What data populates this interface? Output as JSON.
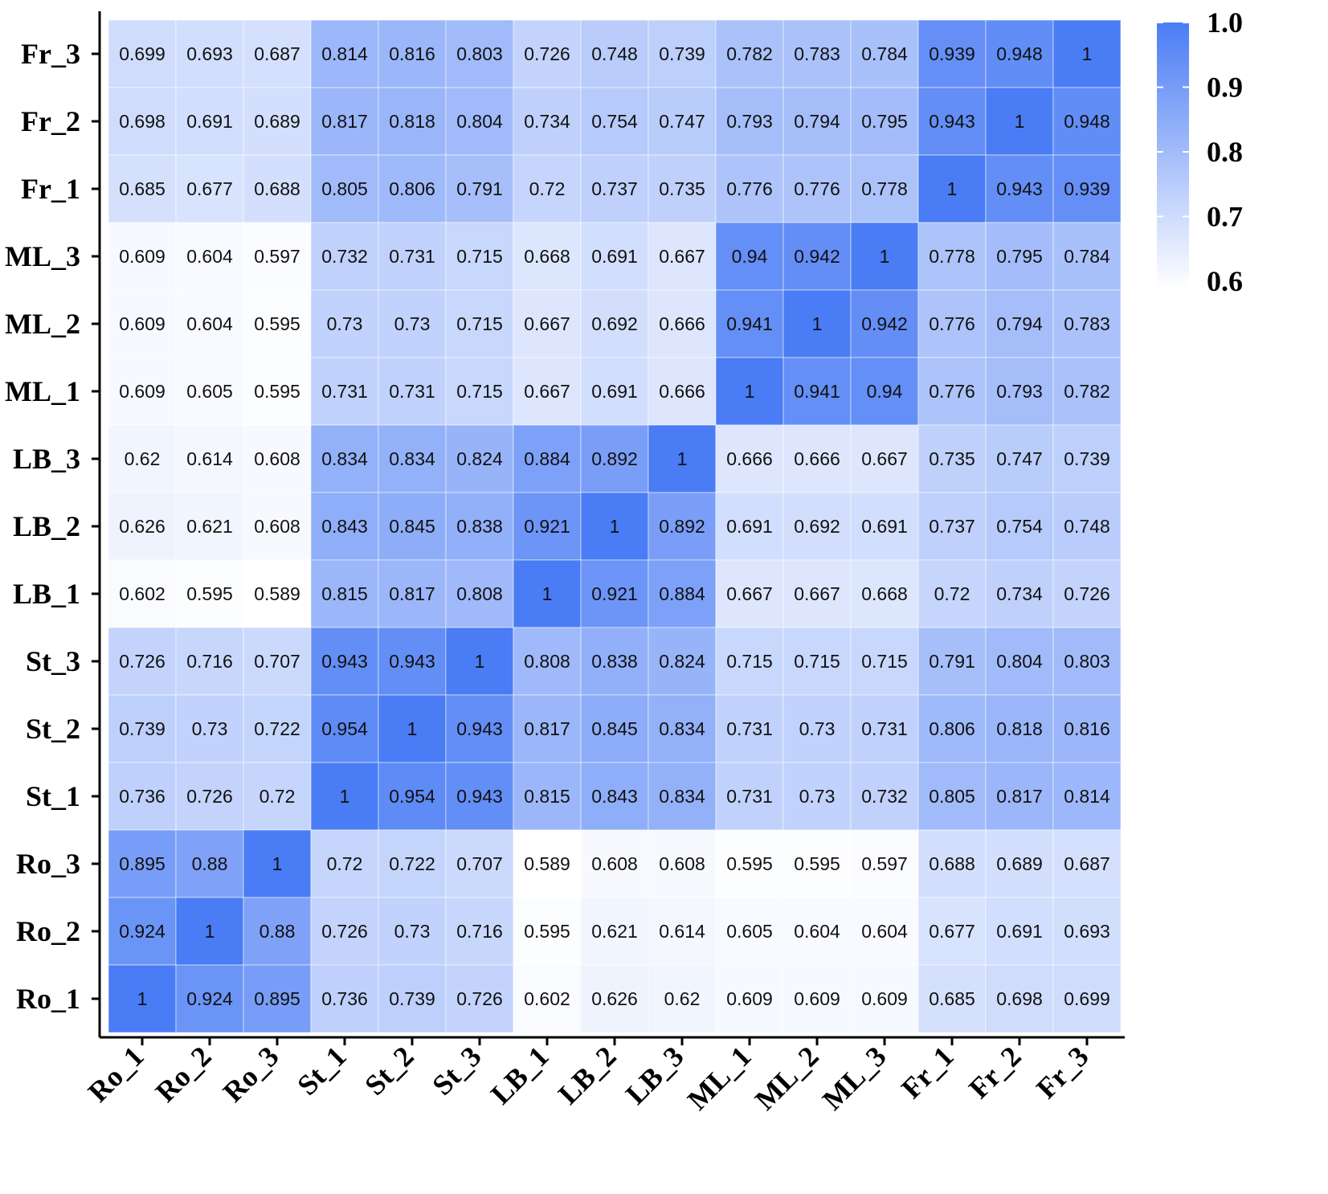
{
  "chart_data": {
    "type": "heatmap",
    "title": "",
    "xlabel": "",
    "ylabel": "",
    "x_labels": [
      "Ro_1",
      "Ro_2",
      "Ro_3",
      "St_1",
      "St_2",
      "St_3",
      "LB_1",
      "LB_2",
      "LB_3",
      "ML_1",
      "ML_2",
      "ML_3",
      "Fr_1",
      "Fr_2",
      "Fr_3"
    ],
    "y_labels": [
      "Fr_3",
      "Fr_2",
      "Fr_1",
      "ML_3",
      "ML_2",
      "ML_1",
      "LB_3",
      "LB_2",
      "LB_1",
      "St_3",
      "St_2",
      "St_1",
      "Ro_3",
      "Ro_2",
      "Ro_1"
    ],
    "values": [
      [
        0.699,
        0.693,
        0.687,
        0.814,
        0.816,
        0.803,
        0.726,
        0.748,
        0.739,
        0.782,
        0.783,
        0.784,
        0.939,
        0.948,
        1
      ],
      [
        0.698,
        0.691,
        0.689,
        0.817,
        0.818,
        0.804,
        0.734,
        0.754,
        0.747,
        0.793,
        0.794,
        0.795,
        0.943,
        1,
        0.948
      ],
      [
        0.685,
        0.677,
        0.688,
        0.805,
        0.806,
        0.791,
        0.72,
        0.737,
        0.735,
        0.776,
        0.776,
        0.778,
        1,
        0.943,
        0.939
      ],
      [
        0.609,
        0.604,
        0.597,
        0.732,
        0.731,
        0.715,
        0.668,
        0.691,
        0.667,
        0.94,
        0.942,
        1,
        0.778,
        0.795,
        0.784
      ],
      [
        0.609,
        0.604,
        0.595,
        0.73,
        0.73,
        0.715,
        0.667,
        0.692,
        0.666,
        0.941,
        1,
        0.942,
        0.776,
        0.794,
        0.783
      ],
      [
        0.609,
        0.605,
        0.595,
        0.731,
        0.731,
        0.715,
        0.667,
        0.691,
        0.666,
        1,
        0.941,
        0.94,
        0.776,
        0.793,
        0.782
      ],
      [
        0.62,
        0.614,
        0.608,
        0.834,
        0.834,
        0.824,
        0.884,
        0.892,
        1,
        0.666,
        0.666,
        0.667,
        0.735,
        0.747,
        0.739
      ],
      [
        0.626,
        0.621,
        0.608,
        0.843,
        0.845,
        0.838,
        0.921,
        1,
        0.892,
        0.691,
        0.692,
        0.691,
        0.737,
        0.754,
        0.748
      ],
      [
        0.602,
        0.595,
        0.589,
        0.815,
        0.817,
        0.808,
        1,
        0.921,
        0.884,
        0.667,
        0.667,
        0.668,
        0.72,
        0.734,
        0.726
      ],
      [
        0.726,
        0.716,
        0.707,
        0.943,
        0.943,
        1,
        0.808,
        0.838,
        0.824,
        0.715,
        0.715,
        0.715,
        0.791,
        0.804,
        0.803
      ],
      [
        0.739,
        0.73,
        0.722,
        0.954,
        1,
        0.943,
        0.817,
        0.845,
        0.834,
        0.731,
        0.73,
        0.731,
        0.806,
        0.818,
        0.816
      ],
      [
        0.736,
        0.726,
        0.72,
        1,
        0.954,
        0.943,
        0.815,
        0.843,
        0.834,
        0.731,
        0.73,
        0.732,
        0.805,
        0.817,
        0.814
      ],
      [
        0.895,
        0.88,
        1,
        0.72,
        0.722,
        0.707,
        0.589,
        0.608,
        0.608,
        0.595,
        0.595,
        0.597,
        0.688,
        0.689,
        0.687
      ],
      [
        0.924,
        1,
        0.88,
        0.726,
        0.73,
        0.716,
        0.595,
        0.621,
        0.614,
        0.605,
        0.604,
        0.604,
        0.677,
        0.691,
        0.693
      ],
      [
        1,
        0.924,
        0.895,
        0.736,
        0.739,
        0.726,
        0.602,
        0.626,
        0.62,
        0.609,
        0.609,
        0.609,
        0.685,
        0.698,
        0.699
      ]
    ],
    "colorbar": {
      "min": 0.589,
      "max": 1.0,
      "ticks": [
        "1.0",
        "0.9",
        "0.8",
        "0.7",
        "0.6"
      ],
      "tick_values": [
        1.0,
        0.9,
        0.8,
        0.7,
        0.6
      ],
      "color_low": "#ffffff",
      "color_high": "#4a7cf5"
    },
    "grid": true,
    "legend": "right"
  }
}
